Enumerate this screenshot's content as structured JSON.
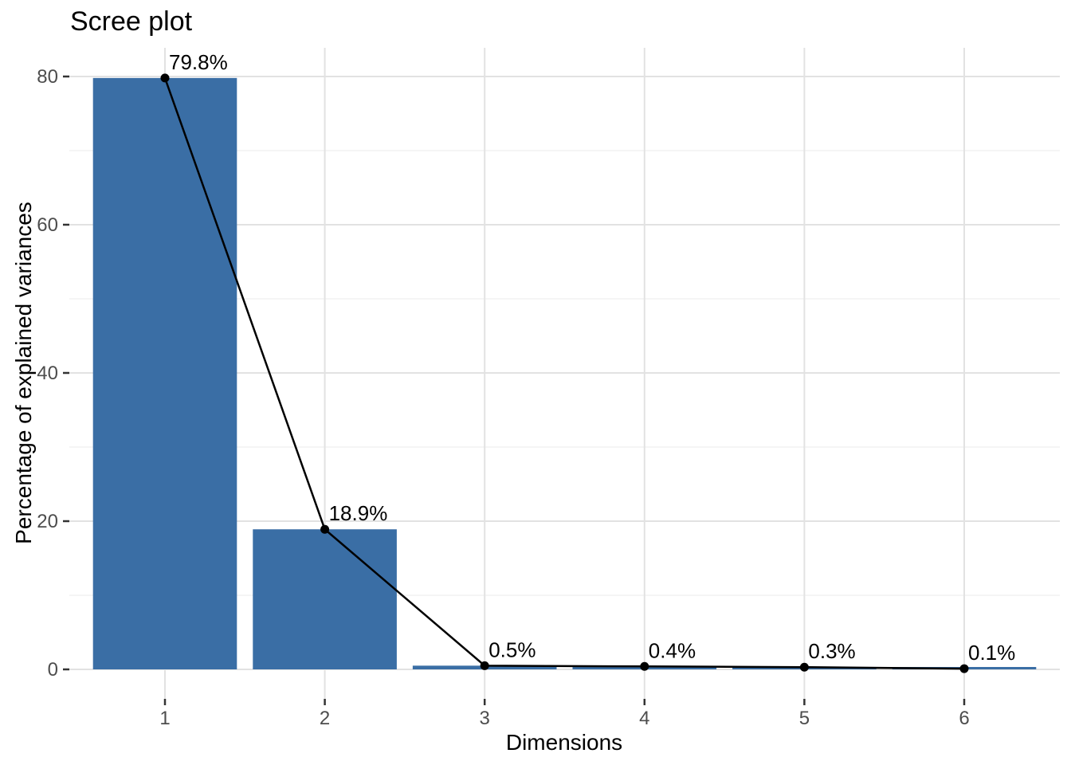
{
  "figure": {
    "title": "Scree plot",
    "x_axis_title": "Dimensions",
    "y_axis_title": "Percentage of explained variances"
  },
  "chart_data": {
    "type": "bar",
    "overlay": "line-with-points",
    "title": "Scree plot",
    "xlabel": "Dimensions",
    "ylabel": "Percentage of explained variances",
    "categories": [
      "1",
      "2",
      "3",
      "4",
      "5",
      "6"
    ],
    "values": [
      79.8,
      18.9,
      0.5,
      0.4,
      0.3,
      0.1
    ],
    "point_labels": [
      "79.8%",
      "18.9%",
      "0.5%",
      "0.4%",
      "0.3%",
      "0.1%"
    ],
    "y_major_ticks": [
      0,
      20,
      40,
      60,
      80
    ],
    "y_minor_gridlines": [
      10,
      30,
      50,
      70
    ],
    "ylim": [
      -4,
      84
    ],
    "grid": "on",
    "legend": "none",
    "colors": {
      "bar_fill": "#3a6ea5",
      "line": "#000000",
      "point": "#000000",
      "grid_major": "#e2e2e2",
      "grid_minor": "#efefef",
      "tick_mark": "#333333",
      "axis_text": "#4d4d4d",
      "title_text": "#000000",
      "label_text": "#000000",
      "background": "#ffffff"
    }
  }
}
